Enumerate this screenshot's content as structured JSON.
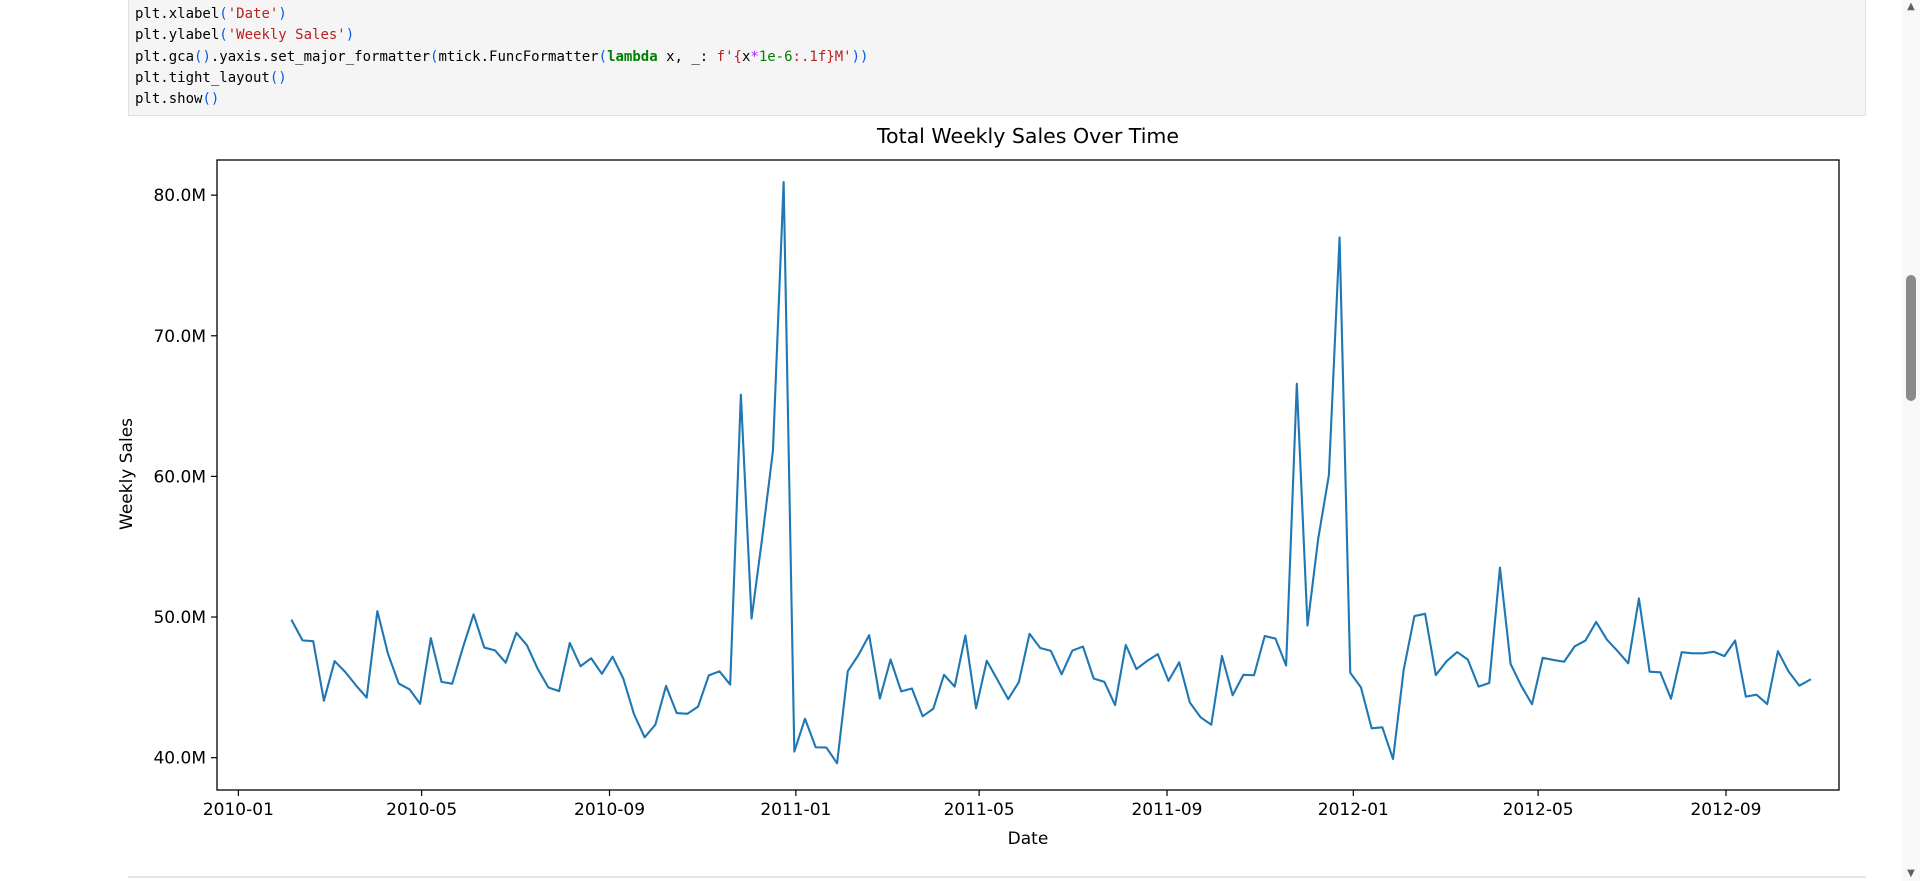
{
  "code": {
    "lines": [
      [
        {
          "t": "plt.xlabel",
          "c": "name"
        },
        {
          "t": "(",
          "c": "punc"
        },
        {
          "t": "'Date'",
          "c": "str"
        },
        {
          "t": ")",
          "c": "punc"
        }
      ],
      [
        {
          "t": "plt.ylabel",
          "c": "name"
        },
        {
          "t": "(",
          "c": "punc"
        },
        {
          "t": "'Weekly Sales'",
          "c": "str"
        },
        {
          "t": ")",
          "c": "punc"
        }
      ],
      [
        {
          "t": "plt.gca",
          "c": "name"
        },
        {
          "t": "()",
          "c": "punc"
        },
        {
          "t": ".yaxis.set_major_formatter",
          "c": "name"
        },
        {
          "t": "(",
          "c": "punc"
        },
        {
          "t": "mtick.FuncFormatter",
          "c": "name"
        },
        {
          "t": "(",
          "c": "punc"
        },
        {
          "t": "lambda",
          "c": "kw"
        },
        {
          "t": " x, _: ",
          "c": "name"
        },
        {
          "t": "f'{",
          "c": "str"
        },
        {
          "t": "x",
          "c": "name"
        },
        {
          "t": "*",
          "c": "op"
        },
        {
          "t": "1e-6",
          "c": "num"
        },
        {
          "t": ":.1f}M'",
          "c": "str"
        },
        {
          "t": "))",
          "c": "punc"
        }
      ],
      [
        {
          "t": "plt.tight_layout",
          "c": "name"
        },
        {
          "t": "()",
          "c": "punc"
        }
      ],
      [
        {
          "t": "plt.show",
          "c": "name"
        },
        {
          "t": "()",
          "c": "punc"
        }
      ]
    ]
  },
  "chart_data": {
    "type": "line",
    "title": "Total Weekly Sales Over Time",
    "xlabel": "Date",
    "ylabel": "Weekly Sales",
    "x_start": "2010-02-05",
    "x_step_days": 7,
    "xlim": [
      "2009-12-18",
      "2012-11-14"
    ],
    "ylim": [
      37.7,
      82.5
    ],
    "y_unit": "M",
    "x_ticks": [
      "2010-01",
      "2010-05",
      "2010-09",
      "2011-01",
      "2011-05",
      "2011-09",
      "2012-01",
      "2012-05",
      "2012-09"
    ],
    "y_ticks": [
      "40.0M",
      "50.0M",
      "60.0M",
      "70.0M",
      "80.0M"
    ],
    "y_tick_values": [
      40,
      50,
      60,
      70,
      80
    ],
    "grid": false,
    "line_color": "#1f77b4",
    "values": [
      49.75,
      48.34,
      48.28,
      44.05,
      46.87,
      46.09,
      45.14,
      44.27,
      50.42,
      47.37,
      45.27,
      44.86,
      43.83,
      48.5,
      45.39,
      45.26,
      47.83,
      50.19,
      47.83,
      47.63,
      46.75,
      48.88,
      47.98,
      46.31,
      44.99,
      44.73,
      48.16,
      46.5,
      47.07,
      45.96,
      47.18,
      45.63,
      43.1,
      41.45,
      42.34,
      45.1,
      43.17,
      43.12,
      43.63,
      45.85,
      46.14,
      45.2,
      65.81,
      49.89,
      55.66,
      61.82,
      80.93,
      40.43,
      42.77,
      40.74,
      40.72,
      39.6,
      46.15,
      47.3,
      48.71,
      44.2,
      46.98,
      44.71,
      44.92,
      42.94,
      43.48,
      45.89,
      45.05,
      48.69,
      43.51,
      46.89,
      45.54,
      44.16,
      45.37,
      48.81,
      47.8,
      47.59,
      45.93,
      47.61,
      47.9,
      45.63,
      45.39,
      43.74,
      48.02,
      46.3,
      46.88,
      47.36,
      45.46,
      46.78,
      43.91,
      42.87,
      42.34,
      47.23,
      44.44,
      45.89,
      45.86,
      48.65,
      48.47,
      46.55,
      66.59,
      49.39,
      55.56,
      60.09,
      76.99,
      46.04,
      45.0,
      42.09,
      42.16,
      39.9,
      46.26,
      50.07,
      50.23,
      45.87,
      46.85,
      47.51,
      46.97,
      45.05,
      45.31,
      53.51,
      46.66,
      45.1,
      43.8,
      47.1,
      46.95,
      46.82,
      47.92,
      48.33,
      49.65,
      48.4,
      47.58,
      46.71,
      51.32,
      46.11,
      46.07,
      44.19,
      47.5,
      47.42,
      47.42,
      47.53,
      47.22,
      48.33,
      44.34,
      44.48,
      43.81,
      47.57,
      46.13,
      45.12,
      45.54
    ]
  },
  "scrollbar": {
    "up_glyph": "▲",
    "down_glyph": "▼"
  }
}
